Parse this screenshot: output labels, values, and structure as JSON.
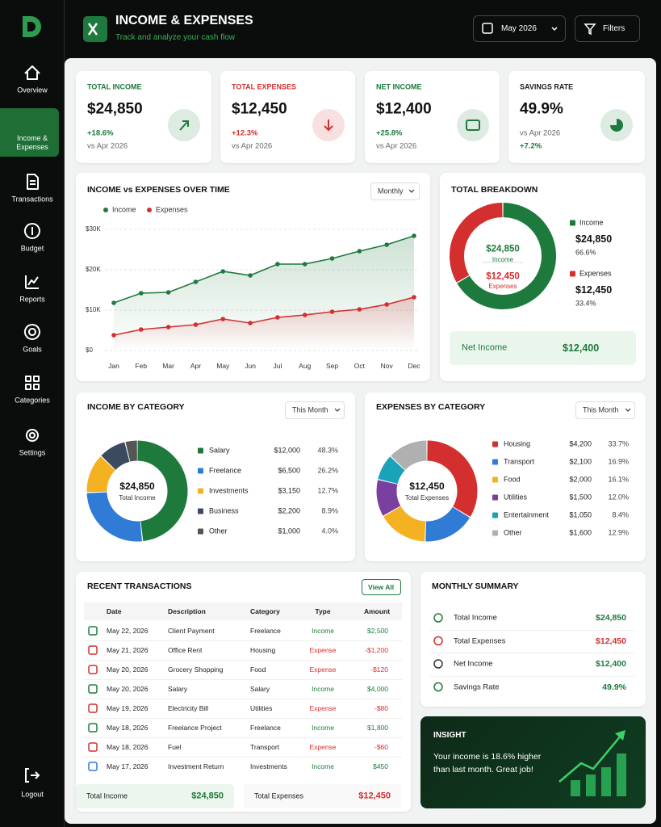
{
  "sidebar": {
    "nav": [
      {
        "label": "Overview"
      },
      {
        "label": "Income & Expenses",
        "active": true
      },
      {
        "label": "Transactions"
      },
      {
        "label": "Budget"
      },
      {
        "label": "Reports"
      },
      {
        "label": "Goals"
      },
      {
        "label": "Categories"
      },
      {
        "label": "Settings"
      }
    ],
    "logout": "Logout"
  },
  "header": {
    "title": "INCOME & EXPENSES",
    "subtitle": "Track and analyze your cash flow",
    "period": "May 2026",
    "filters": "Filters"
  },
  "kpis": [
    {
      "label": "TOTAL INCOME",
      "value": "$24,850",
      "change": "+18.6%",
      "compare": "vs Apr 2026",
      "color": "#1e7a3c"
    },
    {
      "label": "TOTAL EXPENSES",
      "value": "$12,450",
      "change": "+12.3%",
      "compare": "vs Apr 2026",
      "color": "#d32f2f"
    },
    {
      "label": "NET INCOME",
      "value": "$12,400",
      "change": "+25.8%",
      "compare": "vs Apr 2026",
      "color": "#1e7a3c"
    },
    {
      "label": "SAVINGS RATE",
      "value": "49.9%",
      "compare": "vs Apr 2026",
      "change": "+7.2%",
      "color": "#1e7a3c"
    }
  ],
  "trend_chart": {
    "type": "line",
    "title": "INCOME vs EXPENSES OVER TIME",
    "dropdown": "Monthly",
    "categories": [
      "Jan",
      "Feb",
      "Mar",
      "Apr",
      "May",
      "Jun",
      "Jul",
      "Aug",
      "Sep",
      "Oct",
      "Nov",
      "Dec"
    ],
    "series": [
      {
        "name": "Income",
        "color": "#1e7a3c",
        "values": [
          11800,
          14200,
          14400,
          17000,
          19600,
          18600,
          21400,
          21400,
          22800,
          24600,
          26200,
          28400
        ]
      },
      {
        "name": "Expenses",
        "color": "#d32f2f",
        "values": [
          3800,
          5200,
          5800,
          6400,
          7800,
          6800,
          8200,
          8800,
          9600,
          10200,
          11400,
          13200
        ]
      }
    ],
    "ylim": [
      0,
      30000
    ],
    "yticks": [
      {
        "value": 0,
        "label": "$0"
      },
      {
        "value": 10000,
        "label": "$10K"
      },
      {
        "value": 20000,
        "label": "$20K"
      },
      {
        "value": 30000,
        "label": "$30K"
      }
    ],
    "grid": true
  },
  "breakdown": {
    "type": "pie",
    "title": "TOTAL BREAKDOWN",
    "items": [
      {
        "name": "Income",
        "amount": "$24,850",
        "value": 66.6,
        "value_label": "66.6%",
        "color": "#1e7a3c"
      },
      {
        "name": "Expenses",
        "amount": "$12,450",
        "value": 33.4,
        "value_label": "33.4%",
        "color": "#d32f2f"
      }
    ],
    "net": {
      "label": "Net Income",
      "value": "$12,400"
    }
  },
  "income_by_category": {
    "type": "pie",
    "title": "INCOME BY CATEGORY",
    "dropdown": "This Month",
    "center_value": "$24,850",
    "center_label": "Total Income",
    "items": [
      {
        "name": "Salary",
        "amount": "$12,000",
        "value": 48.3,
        "value_label": "48.3%",
        "color": "#1e7a3c"
      },
      {
        "name": "Freelance",
        "amount": "$6,500",
        "value": 26.2,
        "value_label": "26.2%",
        "color": "#2f7bd6"
      },
      {
        "name": "Investments",
        "amount": "$3,150",
        "value": 12.7,
        "value_label": "12.7%",
        "color": "#f4b223"
      },
      {
        "name": "Business",
        "amount": "$2,200",
        "value": 8.9,
        "value_label": "8.9%",
        "color": "#3b4a5e"
      },
      {
        "name": "Other",
        "amount": "$1,000",
        "value": 4.0,
        "value_label": "4.0%",
        "color": "#555555"
      }
    ]
  },
  "expenses_by_category": {
    "type": "pie",
    "title": "EXPENSES BY CATEGORY",
    "dropdown": "This Month",
    "center_value": "$12,450",
    "center_label": "Total Expenses",
    "items": [
      {
        "name": "Housing",
        "amount": "$4,200",
        "value": 33.7,
        "value_label": "33.7%",
        "color": "#d32f2f"
      },
      {
        "name": "Transport",
        "amount": "$2,100",
        "value": 16.9,
        "value_label": "16.9%",
        "color": "#2f7bd6"
      },
      {
        "name": "Food",
        "amount": "$2,000",
        "value": 16.1,
        "value_label": "16.1%",
        "color": "#f4b223"
      },
      {
        "name": "Utilities",
        "amount": "$1,500",
        "value": 12.0,
        "value_label": "12.0%",
        "color": "#7b3fa0"
      },
      {
        "name": "Entertainment",
        "amount": "$1,050",
        "value": 8.4,
        "value_label": "8.4%",
        "color": "#1aa3b8"
      },
      {
        "name": "Other",
        "amount": "$1,600",
        "value": 12.9,
        "value_label": "12.9%",
        "color": "#b0b0b0"
      }
    ]
  },
  "transactions": {
    "title": "RECENT TRANSACTIONS",
    "button": "View All",
    "columns": [
      "Date",
      "Description",
      "Category",
      "Type",
      "Amount"
    ],
    "rows": [
      [
        "May 22, 2026",
        "Client Payment",
        "Freelance",
        "Income",
        "$2,500"
      ],
      [
        "May 21, 2026",
        "Office Rent",
        "Housing",
        "Expense",
        "-$1,200"
      ],
      [
        "May 20, 2026",
        "Grocery Shopping",
        "Food",
        "Expense",
        "-$120"
      ],
      [
        "May 20, 2026",
        "Salary",
        "Salary",
        "Income",
        "$4,000"
      ],
      [
        "May 19, 2026",
        "Electricity Bill",
        "Utilities",
        "Expense",
        "-$80"
      ],
      [
        "May 18, 2026",
        "Freelance Project",
        "Freelance",
        "Income",
        "$1,800"
      ],
      [
        "May 18, 2026",
        "Fuel",
        "Transport",
        "Expense",
        "-$60"
      ],
      [
        "May 17, 2026",
        "Investment Return",
        "Investments",
        "Income",
        "$450"
      ]
    ],
    "totals": [
      {
        "label": "Total Income",
        "value": "$24,850"
      },
      {
        "label": "Total Expenses",
        "value": "$12,450"
      }
    ]
  },
  "monthly_summary": {
    "title": "MONTHLY SUMMARY",
    "rows": [
      {
        "label": "Total Income",
        "value": "$24,850"
      },
      {
        "label": "Total Expenses",
        "value": "$12,450"
      },
      {
        "label": "Net Income",
        "value": "$12,400"
      },
      {
        "label": "Savings Rate",
        "value": "49.9%"
      }
    ]
  },
  "insight": {
    "title": "INSIGHT",
    "text": "Your income is 18.6% higher than last month. Great job!"
  }
}
